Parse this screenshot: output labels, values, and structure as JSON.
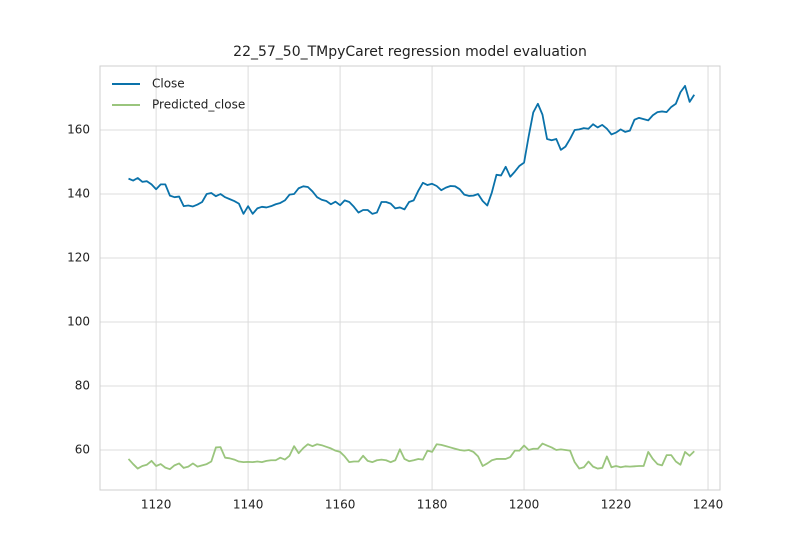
{
  "chart_data": {
    "type": "line",
    "title": "22_57_50_TMpyCaret regression model evaluation",
    "x": [
      1114,
      1115,
      1116,
      1117,
      1118,
      1119,
      1120,
      1121,
      1122,
      1123,
      1124,
      1125,
      1126,
      1127,
      1128,
      1129,
      1130,
      1131,
      1132,
      1133,
      1134,
      1135,
      1136,
      1137,
      1138,
      1139,
      1140,
      1141,
      1142,
      1143,
      1144,
      1145,
      1146,
      1147,
      1148,
      1149,
      1150,
      1151,
      1152,
      1153,
      1154,
      1155,
      1156,
      1157,
      1158,
      1159,
      1160,
      1161,
      1162,
      1163,
      1164,
      1165,
      1166,
      1167,
      1168,
      1169,
      1170,
      1171,
      1172,
      1173,
      1174,
      1175,
      1176,
      1177,
      1178,
      1179,
      1180,
      1181,
      1182,
      1183,
      1184,
      1185,
      1186,
      1187,
      1188,
      1189,
      1190,
      1191,
      1192,
      1193,
      1194,
      1195,
      1196,
      1197,
      1198,
      1199,
      1200,
      1201,
      1202,
      1203,
      1204,
      1205,
      1206,
      1207,
      1208,
      1209,
      1210,
      1211,
      1212,
      1213,
      1214,
      1215,
      1216,
      1217,
      1218,
      1219,
      1220,
      1221,
      1222,
      1223,
      1224,
      1225,
      1226,
      1227,
      1228,
      1229,
      1230,
      1231,
      1232,
      1233,
      1234,
      1235,
      1236,
      1237
    ],
    "series": [
      {
        "name": "Close",
        "color": "#0a72aa",
        "values": [
          144.8,
          144.2,
          145,
          143.8,
          144,
          143,
          141.5,
          143,
          143,
          139.5,
          139,
          139.2,
          136.2,
          136.4,
          136.1,
          136.7,
          137.5,
          140,
          140.3,
          139.3,
          140,
          139,
          138.4,
          137.8,
          137,
          133.8,
          136.2,
          133.8,
          135.5,
          136,
          135.8,
          136.2,
          136.8,
          137.2,
          138,
          139.8,
          140,
          141.8,
          142.4,
          142.2,
          140.8,
          139,
          138.2,
          137.8,
          136.8,
          137.6,
          136.5,
          138,
          137.5,
          136,
          134.2,
          135,
          135,
          133.8,
          134.2,
          137.5,
          137.5,
          137,
          135.5,
          135.8,
          135.2,
          137.5,
          138,
          141,
          143.5,
          142.8,
          143.2,
          142.5,
          141.2,
          142,
          142.5,
          142.4,
          141.5,
          139.8,
          139.4,
          139.5,
          140,
          137.8,
          136.4,
          140.5,
          146,
          145.8,
          148.5,
          145.4,
          147,
          148.8,
          149.8,
          158,
          165.5,
          168.2,
          164.8,
          157.2,
          156.8,
          157.2,
          153.8,
          154.8,
          157.2,
          160,
          160.2,
          160.6,
          160.4,
          161.8,
          160.8,
          161.6,
          160.4,
          158.6,
          159.2,
          160.2,
          159.4,
          159.8,
          163.2,
          163.8,
          163.4,
          163,
          164.6,
          165.6,
          165.8,
          165.6,
          167.2,
          168.2,
          171.8,
          173.8,
          168.8,
          171
        ]
      },
      {
        "name": "Predicted_close",
        "color": "#9ac57d",
        "values": [
          57.2,
          55.6,
          54.2,
          55,
          55.4,
          56.6,
          55,
          55.6,
          54.5,
          54,
          55.2,
          55.8,
          54.4,
          54.8,
          55.8,
          54.8,
          55.2,
          55.6,
          56.4,
          60.8,
          60.9,
          57.6,
          57.4,
          57,
          56.4,
          56.2,
          56.3,
          56.2,
          56.4,
          56.2,
          56.6,
          56.8,
          56.8,
          57.6,
          57,
          58.2,
          61.2,
          59,
          60.6,
          61.8,
          61.2,
          61.8,
          61.5,
          61,
          60.5,
          59.8,
          59.4,
          58,
          56.2,
          56.4,
          56.4,
          58.2,
          56.6,
          56.2,
          56.8,
          57,
          56.8,
          56.2,
          56.8,
          60.2,
          57.2,
          56.5,
          56.8,
          57.2,
          57,
          59.8,
          59.4,
          61.8,
          61.6,
          61.2,
          60.8,
          60.4,
          60,
          59.8,
          60,
          59.4,
          58,
          55,
          55.8,
          56.8,
          57.2,
          57.2,
          57.2,
          57.8,
          59.8,
          59.8,
          61.4,
          60,
          60.4,
          60.4,
          62,
          61.4,
          60.8,
          60,
          60.2,
          60,
          59.8,
          56.2,
          54.2,
          54.6,
          56.4,
          54.8,
          54.2,
          54.4,
          58,
          54.6,
          55,
          54.6,
          54.9,
          54.8,
          54.9,
          55,
          55,
          59.4,
          57.2,
          55.6,
          55.2,
          58.4,
          58.4,
          56.4,
          55.4,
          59.4,
          58.2,
          59.6
        ]
      }
    ],
    "xlim": [
      1107.8,
      1242.6
    ],
    "xticks": [
      1120,
      1140,
      1160,
      1180,
      1200,
      1220,
      1240
    ],
    "ylim": [
      47.5,
      180
    ],
    "yticks": [
      60,
      80,
      100,
      120,
      140,
      160
    ],
    "grid": true,
    "legend": "upper-left"
  }
}
